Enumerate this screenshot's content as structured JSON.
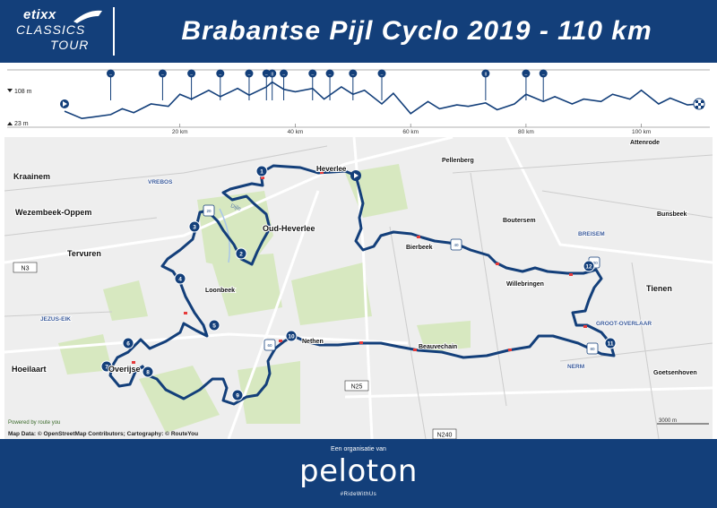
{
  "header": {
    "logo_line1": "etixx",
    "logo_line2": "CLASSICS",
    "logo_line3": "TOUR",
    "title": "Brabantse Pijl Cyclo 2019 - 110 km"
  },
  "profile": {
    "y_max_label": "108 m",
    "y_min_label": "23 m",
    "x_ticks": [
      "20 km",
      "40 km",
      "60 km",
      "80 km",
      "100 km"
    ],
    "x_tick_values": [
      20,
      40,
      60,
      80,
      100
    ],
    "elevation_km": [
      0,
      3,
      5,
      8,
      10,
      12,
      15,
      18,
      20,
      22,
      25,
      27,
      30,
      32,
      35,
      36,
      38,
      40,
      43,
      45,
      48,
      50,
      52,
      55,
      57,
      60,
      63,
      65,
      68,
      70,
      73,
      75,
      78,
      80,
      83,
      85,
      88,
      90,
      93,
      95,
      98,
      100,
      103,
      105,
      108,
      110
    ],
    "elevation_m": [
      45,
      30,
      33,
      38,
      50,
      42,
      60,
      55,
      80,
      70,
      88,
      75,
      92,
      78,
      95,
      105,
      90,
      85,
      92,
      70,
      95,
      80,
      88,
      60,
      82,
      40,
      65,
      50,
      58,
      55,
      62,
      48,
      60,
      80,
      65,
      75,
      60,
      70,
      65,
      80,
      70,
      88,
      60,
      72,
      58,
      60
    ],
    "climb_markers_km": [
      8,
      17,
      22,
      27,
      32,
      35,
      36,
      38,
      43,
      46,
      50,
      55,
      73,
      80,
      83
    ],
    "climb_labels": [
      "",
      "",
      "",
      "",
      "",
      "",
      "II",
      "",
      "",
      "",
      "",
      "",
      "II",
      "",
      ""
    ],
    "colors": {
      "line": "#133f7a",
      "fill": "#ffffff",
      "marker": "#133f7a"
    }
  },
  "map": {
    "towns": [
      {
        "id": "kraainem",
        "name": "Kraainem"
      },
      {
        "id": "wezembeek",
        "name": "Wezembeek-Oppem"
      },
      {
        "id": "tervuren",
        "name": "Tervuren"
      },
      {
        "id": "hoeilaart",
        "name": "Hoeilaart"
      },
      {
        "id": "overijse",
        "name": "Overijse"
      },
      {
        "id": "loonbeek",
        "name": "Loonbeek"
      },
      {
        "id": "oud-heverlee",
        "name": "Oud-Heverlee"
      },
      {
        "id": "heverlee",
        "name": "Heverlee"
      },
      {
        "id": "pellenberg",
        "name": "Pellenberg"
      },
      {
        "id": "boutersem",
        "name": "Boutersem"
      },
      {
        "id": "bierbeek",
        "name": "Bierbeek"
      },
      {
        "id": "willebringen",
        "name": "Willebringen"
      },
      {
        "id": "tienen",
        "name": "Tienen"
      },
      {
        "id": "attenrode",
        "name": "Attenrode"
      },
      {
        "id": "bunsbeek",
        "name": "Bunsbeek"
      },
      {
        "id": "nethen",
        "name": "Nethen"
      },
      {
        "id": "beauvechain",
        "name": "Beauvechain"
      },
      {
        "id": "goetsenhoven",
        "name": "Goetsenhoven"
      }
    ],
    "regions": [
      {
        "id": "vrebos",
        "name": "VREBOS"
      },
      {
        "id": "jezus-eik",
        "name": "JEZUS-EIK"
      },
      {
        "id": "breisem",
        "name": "BREISEM"
      },
      {
        "id": "groot-overlaar",
        "name": "GROOT-OVERLAAR"
      },
      {
        "id": "nerm",
        "name": "NERM"
      }
    ],
    "roads": [
      "N3",
      "N25",
      "N240"
    ],
    "river_label": "Dijle",
    "km_markers": [
      "20 km",
      "40 km",
      "60 km",
      "80 km",
      "100 km"
    ],
    "waypoints": [
      "1",
      "2",
      "3",
      "4",
      "5",
      "6",
      "7",
      "8",
      "9",
      "10",
      "11",
      "12"
    ],
    "scale_label": "3000 m",
    "powered_by": "Powered by route you",
    "attribution": "Map Data: © OpenStreetMap Contributors; Cartography: ©  RouteYou",
    "colors": {
      "route": "#133f7a",
      "land": "#eeeeee",
      "forest": "#d7e8c0",
      "road": "#ffffff",
      "town_text": "#111111",
      "region_text": "#3a5a9a",
      "warning": "#e63a3a"
    }
  },
  "footer": {
    "tagline": "Een organisatie van",
    "logo": "peloton",
    "sub": "#RideWithUs"
  }
}
